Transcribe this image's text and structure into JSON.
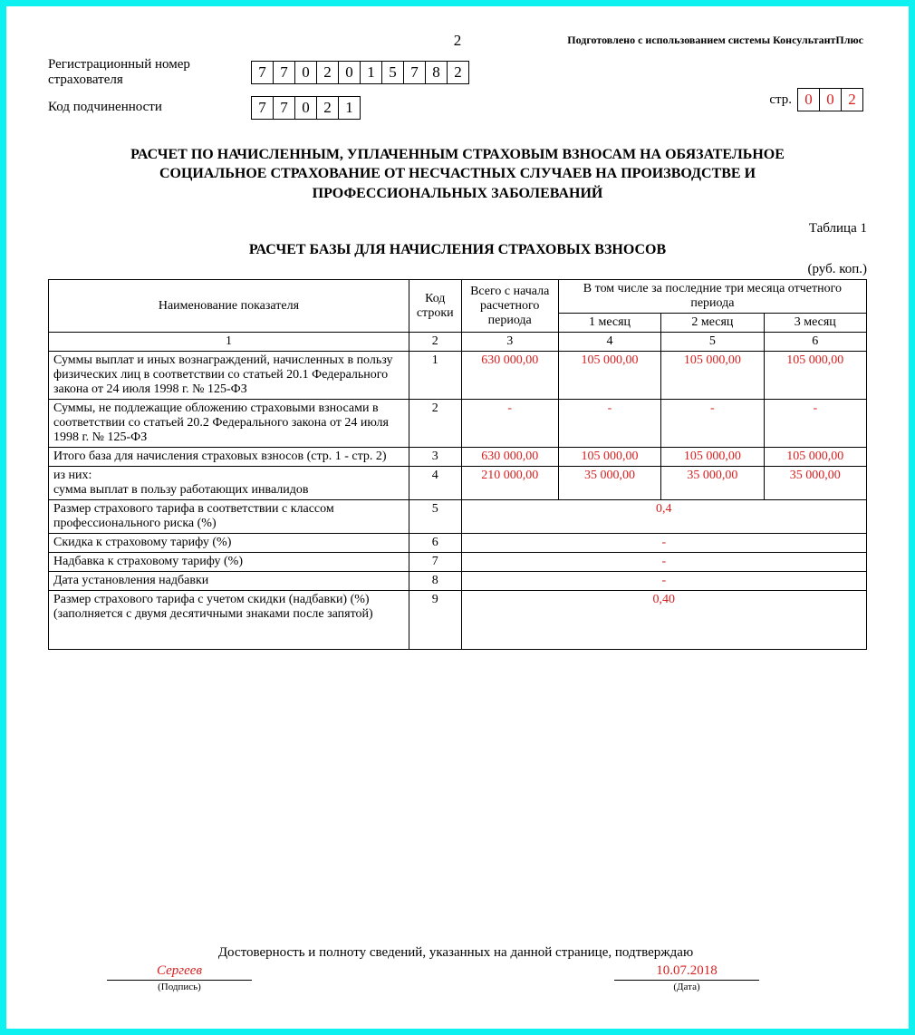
{
  "page_number": "2",
  "prepared_by": "Подготовлено с использованием системы КонсультантПлюс",
  "fields": {
    "reg_number_label": "Регистрационный номер страхователя",
    "reg_number_digits": [
      "7",
      "7",
      "0",
      "2",
      "0",
      "1",
      "5",
      "7",
      "8",
      "2"
    ],
    "subordination_label": "Код подчиненности",
    "subordination_digits": [
      "7",
      "7",
      "0",
      "2",
      "1"
    ],
    "str_label": "стр.",
    "str_digits": [
      "0",
      "0",
      "2"
    ]
  },
  "title_lines": {
    "l1": "РАСЧЕТ ПО НАЧИСЛЕННЫМ, УПЛАЧЕННЫМ СТРАХОВЫМ ВЗНОСАМ НА ОБЯЗАТЕЛЬНОЕ",
    "l2": "СОЦИАЛЬНОЕ СТРАХОВАНИЕ ОТ НЕСЧАСТНЫХ СЛУЧАЕВ НА ПРОИЗВОДСТВЕ И",
    "l3": "ПРОФЕССИОНАЛЬНЫХ ЗАБОЛЕВАНИЙ"
  },
  "table_caption": "Таблица 1",
  "subtitle": "РАСЧЕТ БАЗЫ ДЛЯ НАЧИСЛЕНИЯ СТРАХОВЫХ ВЗНОСОВ",
  "currency_note": "(руб. коп.)",
  "headers": {
    "name": "Наименование показателя",
    "code": "Код строки",
    "total": "Всего с начала расчетного периода",
    "period_group": "В том числе за последние три месяца отчетного периода",
    "m1": "1 месяц",
    "m2": "2 месяц",
    "m3": "3 месяц"
  },
  "colnums": {
    "c1": "1",
    "c2": "2",
    "c3": "3",
    "c4": "4",
    "c5": "5",
    "c6": "6"
  },
  "rows": [
    {
      "label": "Суммы выплат и иных вознаграждений, начисленных в пользу физических лиц в соответствии со статьей 20.1 Федерального закона от 24 июля 1998 г. № 125-ФЗ",
      "code": "1",
      "total": "630 000,00",
      "m1": "105 000,00",
      "m2": "105 000,00",
      "m3": "105 000,00",
      "merged": false
    },
    {
      "label": "Суммы, не подлежащие обложению страховыми взносами в соответствии со статьей 20.2 Федерального закона от 24 июля 1998 г. № 125-ФЗ",
      "code": "2",
      "total": "-",
      "m1": "-",
      "m2": "-",
      "m3": "-",
      "merged": false
    },
    {
      "label": "Итого база для начисления страховых взносов (стр. 1 - стр. 2)",
      "code": "3",
      "total": "630 000,00",
      "m1": "105 000,00",
      "m2": "105 000,00",
      "m3": "105 000,00",
      "merged": false
    },
    {
      "label": "из них:\nсумма выплат в пользу работающих инвалидов",
      "code": "4",
      "total": "210 000,00",
      "m1": "35 000,00",
      "m2": "35 000,00",
      "m3": "35 000,00",
      "merged": false
    },
    {
      "label": "Размер страхового тарифа в соответствии с классом профессионального риска (%)",
      "code": "5",
      "merged_value": "0,4",
      "merged": true
    },
    {
      "label": "Скидка к страховому тарифу (%)",
      "code": "6",
      "merged_value": "-",
      "merged": true
    },
    {
      "label": "Надбавка к страховому тарифу (%)",
      "code": "7",
      "merged_value": "-",
      "merged": true
    },
    {
      "label": "Дата установления надбавки",
      "code": "8",
      "merged_value": "-",
      "merged": true
    },
    {
      "label": "Размер страхового тарифа с учетом скидки (надбавки) (%) (заполняется с двумя десятичными знаками после запятой)",
      "code": "9",
      "merged_value": "0,40",
      "merged": true,
      "extra_pad": true
    }
  ],
  "signature": {
    "statement": "Достоверность и полноту сведений, указанных на данной странице, подтверждаю",
    "name": "Сергеев",
    "name_caption": "(Подпись)",
    "date": "10.07.2018",
    "date_caption": "(Дата)"
  },
  "colors": {
    "border": "#0ef1f1",
    "value": "#d82020",
    "text": "#000000"
  }
}
